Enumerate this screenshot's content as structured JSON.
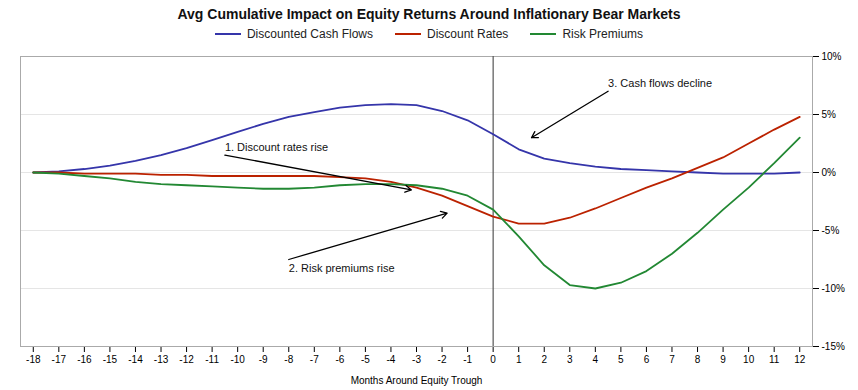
{
  "chart_data": {
    "type": "line",
    "title": "Avg Cumulative Impact on Equity Returns Around Inflationary Bear Markets",
    "x_label": "Months Around Equity Trough",
    "x": [
      -18,
      -17,
      -16,
      -15,
      -14,
      -13,
      -12,
      -11,
      -10,
      -9,
      -8,
      -7,
      -6,
      -5,
      -4,
      -3,
      -2,
      -1,
      0,
      1,
      2,
      3,
      4,
      5,
      6,
      7,
      8,
      9,
      10,
      11,
      12
    ],
    "series": [
      {
        "name": "Discounted Cash Flows",
        "color": "#3535aa",
        "values": [
          0.0,
          0.1,
          0.3,
          0.6,
          1.0,
          1.5,
          2.1,
          2.8,
          3.5,
          4.2,
          4.8,
          5.2,
          5.6,
          5.8,
          5.9,
          5.8,
          5.3,
          4.5,
          3.3,
          2.0,
          1.2,
          0.8,
          0.5,
          0.3,
          0.2,
          0.1,
          0.0,
          -0.1,
          -0.1,
          -0.1,
          0.0
        ]
      },
      {
        "name": "Discount Rates",
        "color": "#bb2200",
        "values": [
          0.0,
          0.0,
          -0.1,
          -0.1,
          -0.1,
          -0.2,
          -0.2,
          -0.3,
          -0.3,
          -0.3,
          -0.3,
          -0.3,
          -0.4,
          -0.5,
          -0.8,
          -1.3,
          -2.0,
          -2.9,
          -3.8,
          -4.4,
          -4.4,
          -3.9,
          -3.1,
          -2.2,
          -1.3,
          -0.5,
          0.4,
          1.3,
          2.5,
          3.7,
          4.8
        ]
      },
      {
        "name": "Risk Premiums",
        "color": "#228833",
        "values": [
          0.0,
          -0.1,
          -0.3,
          -0.5,
          -0.8,
          -1.0,
          -1.1,
          -1.2,
          -1.3,
          -1.4,
          -1.4,
          -1.3,
          -1.1,
          -1.0,
          -1.0,
          -1.1,
          -1.4,
          -2.0,
          -3.2,
          -5.5,
          -8.0,
          -9.7,
          -10.0,
          -9.5,
          -8.5,
          -7.0,
          -5.2,
          -3.2,
          -1.3,
          0.8,
          3.0
        ]
      }
    ],
    "xlim": [
      -18.5,
      12.5
    ],
    "xticks": [
      -18,
      -17,
      -16,
      -15,
      -14,
      -13,
      -12,
      -11,
      -10,
      -9,
      -8,
      -7,
      -6,
      -5,
      -4,
      -3,
      -2,
      -1,
      0,
      1,
      2,
      3,
      4,
      5,
      6,
      7,
      8,
      9,
      10,
      11,
      12
    ],
    "ylim": [
      -15,
      10
    ],
    "yticks": [
      {
        "value": -15,
        "label": "-15%"
      },
      {
        "value": -10,
        "label": "-10%"
      },
      {
        "value": -5,
        "label": "-5%"
      },
      {
        "value": 0,
        "label": "0%"
      },
      {
        "value": 5,
        "label": "5%"
      },
      {
        "value": 10,
        "label": "10%"
      }
    ],
    "grid": true,
    "legend": "top",
    "vlines": [
      0
    ],
    "annotations": [
      {
        "text": "1. Discount rates rise",
        "xy": [
          -3.2,
          -1.5
        ],
        "xytext": [
          -10.5,
          1.5
        ]
      },
      {
        "text": "2. Risk premiums rise",
        "xy": [
          -1.8,
          -3.5
        ],
        "xytext": [
          -8.0,
          -7.5
        ]
      },
      {
        "text": "3. Cash flows decline",
        "xy": [
          1.5,
          3.0
        ],
        "xytext": [
          4.5,
          7.0
        ]
      }
    ]
  }
}
